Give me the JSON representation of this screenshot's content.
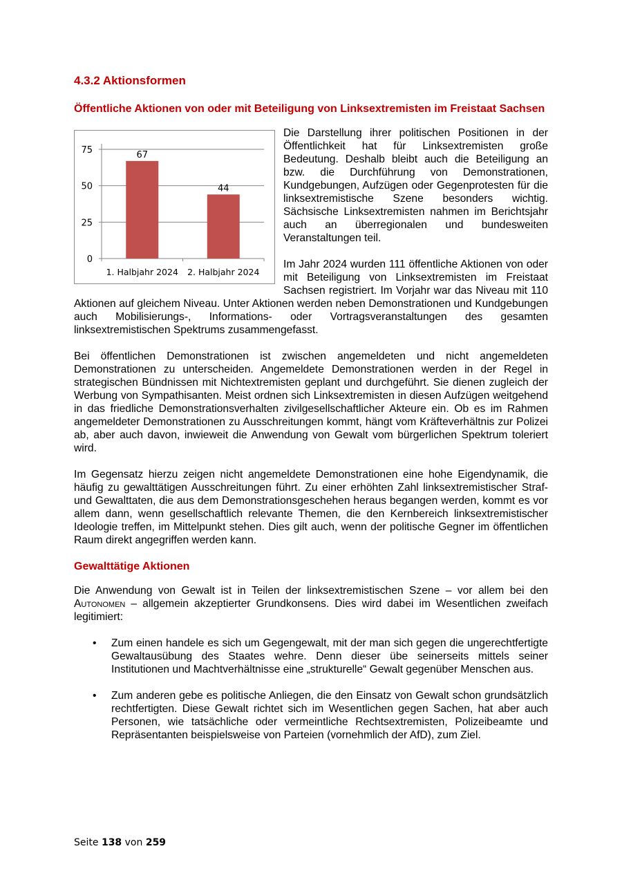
{
  "section_title": "4.3.2 Aktionsformen",
  "subtitle": "Öffentliche Aktionen von oder mit Beteiligung von Linksextremisten im Freistaat Sachsen",
  "chart_data": {
    "type": "bar",
    "categories": [
      "1. Halbjahr 2024",
      "2. Halbjahr 2024"
    ],
    "values": [
      67,
      44
    ],
    "data_labels": [
      "67",
      "44"
    ],
    "yticks": [
      "0",
      "25",
      "50",
      "75"
    ],
    "ylim": [
      0,
      75
    ],
    "grid": true,
    "color": "#c0504d"
  },
  "paragraphs": [
    "Die Darstellung ihrer politischen Positionen in der Öffentlichkeit hat für Linksextremisten große Bedeutung. Deshalb bleibt auch die Beteiligung an bzw. die Durchführung von Demonstrationen, Kundgebungen, Aufzügen oder Gegenprotesten für die linksextremistische Szene besonders wichtig. Sächsische Linksextremisten nahmen im Berichtsjahr auch an überregionalen und bundesweiten Veranstaltungen teil.",
    "Im Jahr 2024 wurden 111 öffentliche Aktionen von oder mit Beteiligung von Linksextremisten im Freistaat Sachsen registriert. Im Vorjahr war das Niveau mit 110 Aktionen auf gleichem Niveau. Unter Aktionen werden neben Demonstrationen und Kundgebungen auch Mobilisierungs-, Informations- oder Vortragsveranstaltungen des gesamten linksextremistischen Spektrums zusammengefasst.",
    "Bei öffentlichen Demonstrationen ist zwischen angemeldeten und nicht angemeldeten Demonstrationen zu unterscheiden. Angemeldete Demonstrationen werden in der Regel in strategischen Bündnissen mit Nichtextremisten geplant und durchgeführt. Sie dienen zugleich der Werbung von Sympathisanten. Meist ordnen sich Linksextremisten in diesen Aufzügen weitgehend in das friedliche Demonstrationsverhalten zivilgesellschaftlicher Akteure ein. Ob es im Rahmen angemeldeter Demonstrationen zu Ausschreitungen kommt, hängt vom Kräfteverhältnis zur Polizei ab, aber auch davon, inwieweit die Anwendung von Gewalt vom bürgerlichen Spektrum toleriert wird.",
    "Im Gegensatz hierzu zeigen nicht angemeldete Demonstrationen eine hohe Eigendynamik, die häufig zu gewalttätigen Ausschreitungen führt. Zu einer erhöhten Zahl linksextremistischer Straf- und Gewalttaten, die aus dem Demonstrationsgeschehen heraus begangen werden, kommt es vor allem dann, wenn gesellschaftlich relevante Themen, die den Kernbereich linksextremistischer Ideologie treffen, im Mittelpunkt stehen. Dies gilt auch, wenn der politische Gegner im öffentlichen Raum direkt angegriffen werden kann."
  ],
  "violence_heading": "Gewalttätige Aktionen",
  "violence_intro": {
    "before": "Die Anwendung von Gewalt ist in Teilen der linksextremistischen Szene – vor allem bei den ",
    "term": "Autonomen",
    "after": " – allgemein akzeptierter Grundkonsens. Dies wird dabei im Wesentlichen zweifach legitimiert:"
  },
  "bullets": [
    "Zum einen handele es sich um Gegengewalt, mit der man sich gegen die ungerechtfertigte Gewaltausübung des Staates wehre. Denn dieser übe seinerseits mittels seiner Institutionen und Machtverhältnisse eine „strukturelle“ Gewalt gegenüber Menschen aus.",
    "Zum anderen gebe es politische Anliegen, die den Einsatz von Gewalt schon grundsätzlich rechtfertigten. Diese Gewalt richtet sich im Wesentlichen gegen Sachen, hat aber auch Personen, wie tatsächliche oder vermeintliche Rechtsextremisten, Polizeibeamte und Repräsentanten beispielsweise von Parteien (vornehmlich der AfD), zum Ziel."
  ],
  "bullet_symbol": "•",
  "footer": {
    "prefix": "Seite",
    "page": "138",
    "mid": "von",
    "total": "259"
  }
}
